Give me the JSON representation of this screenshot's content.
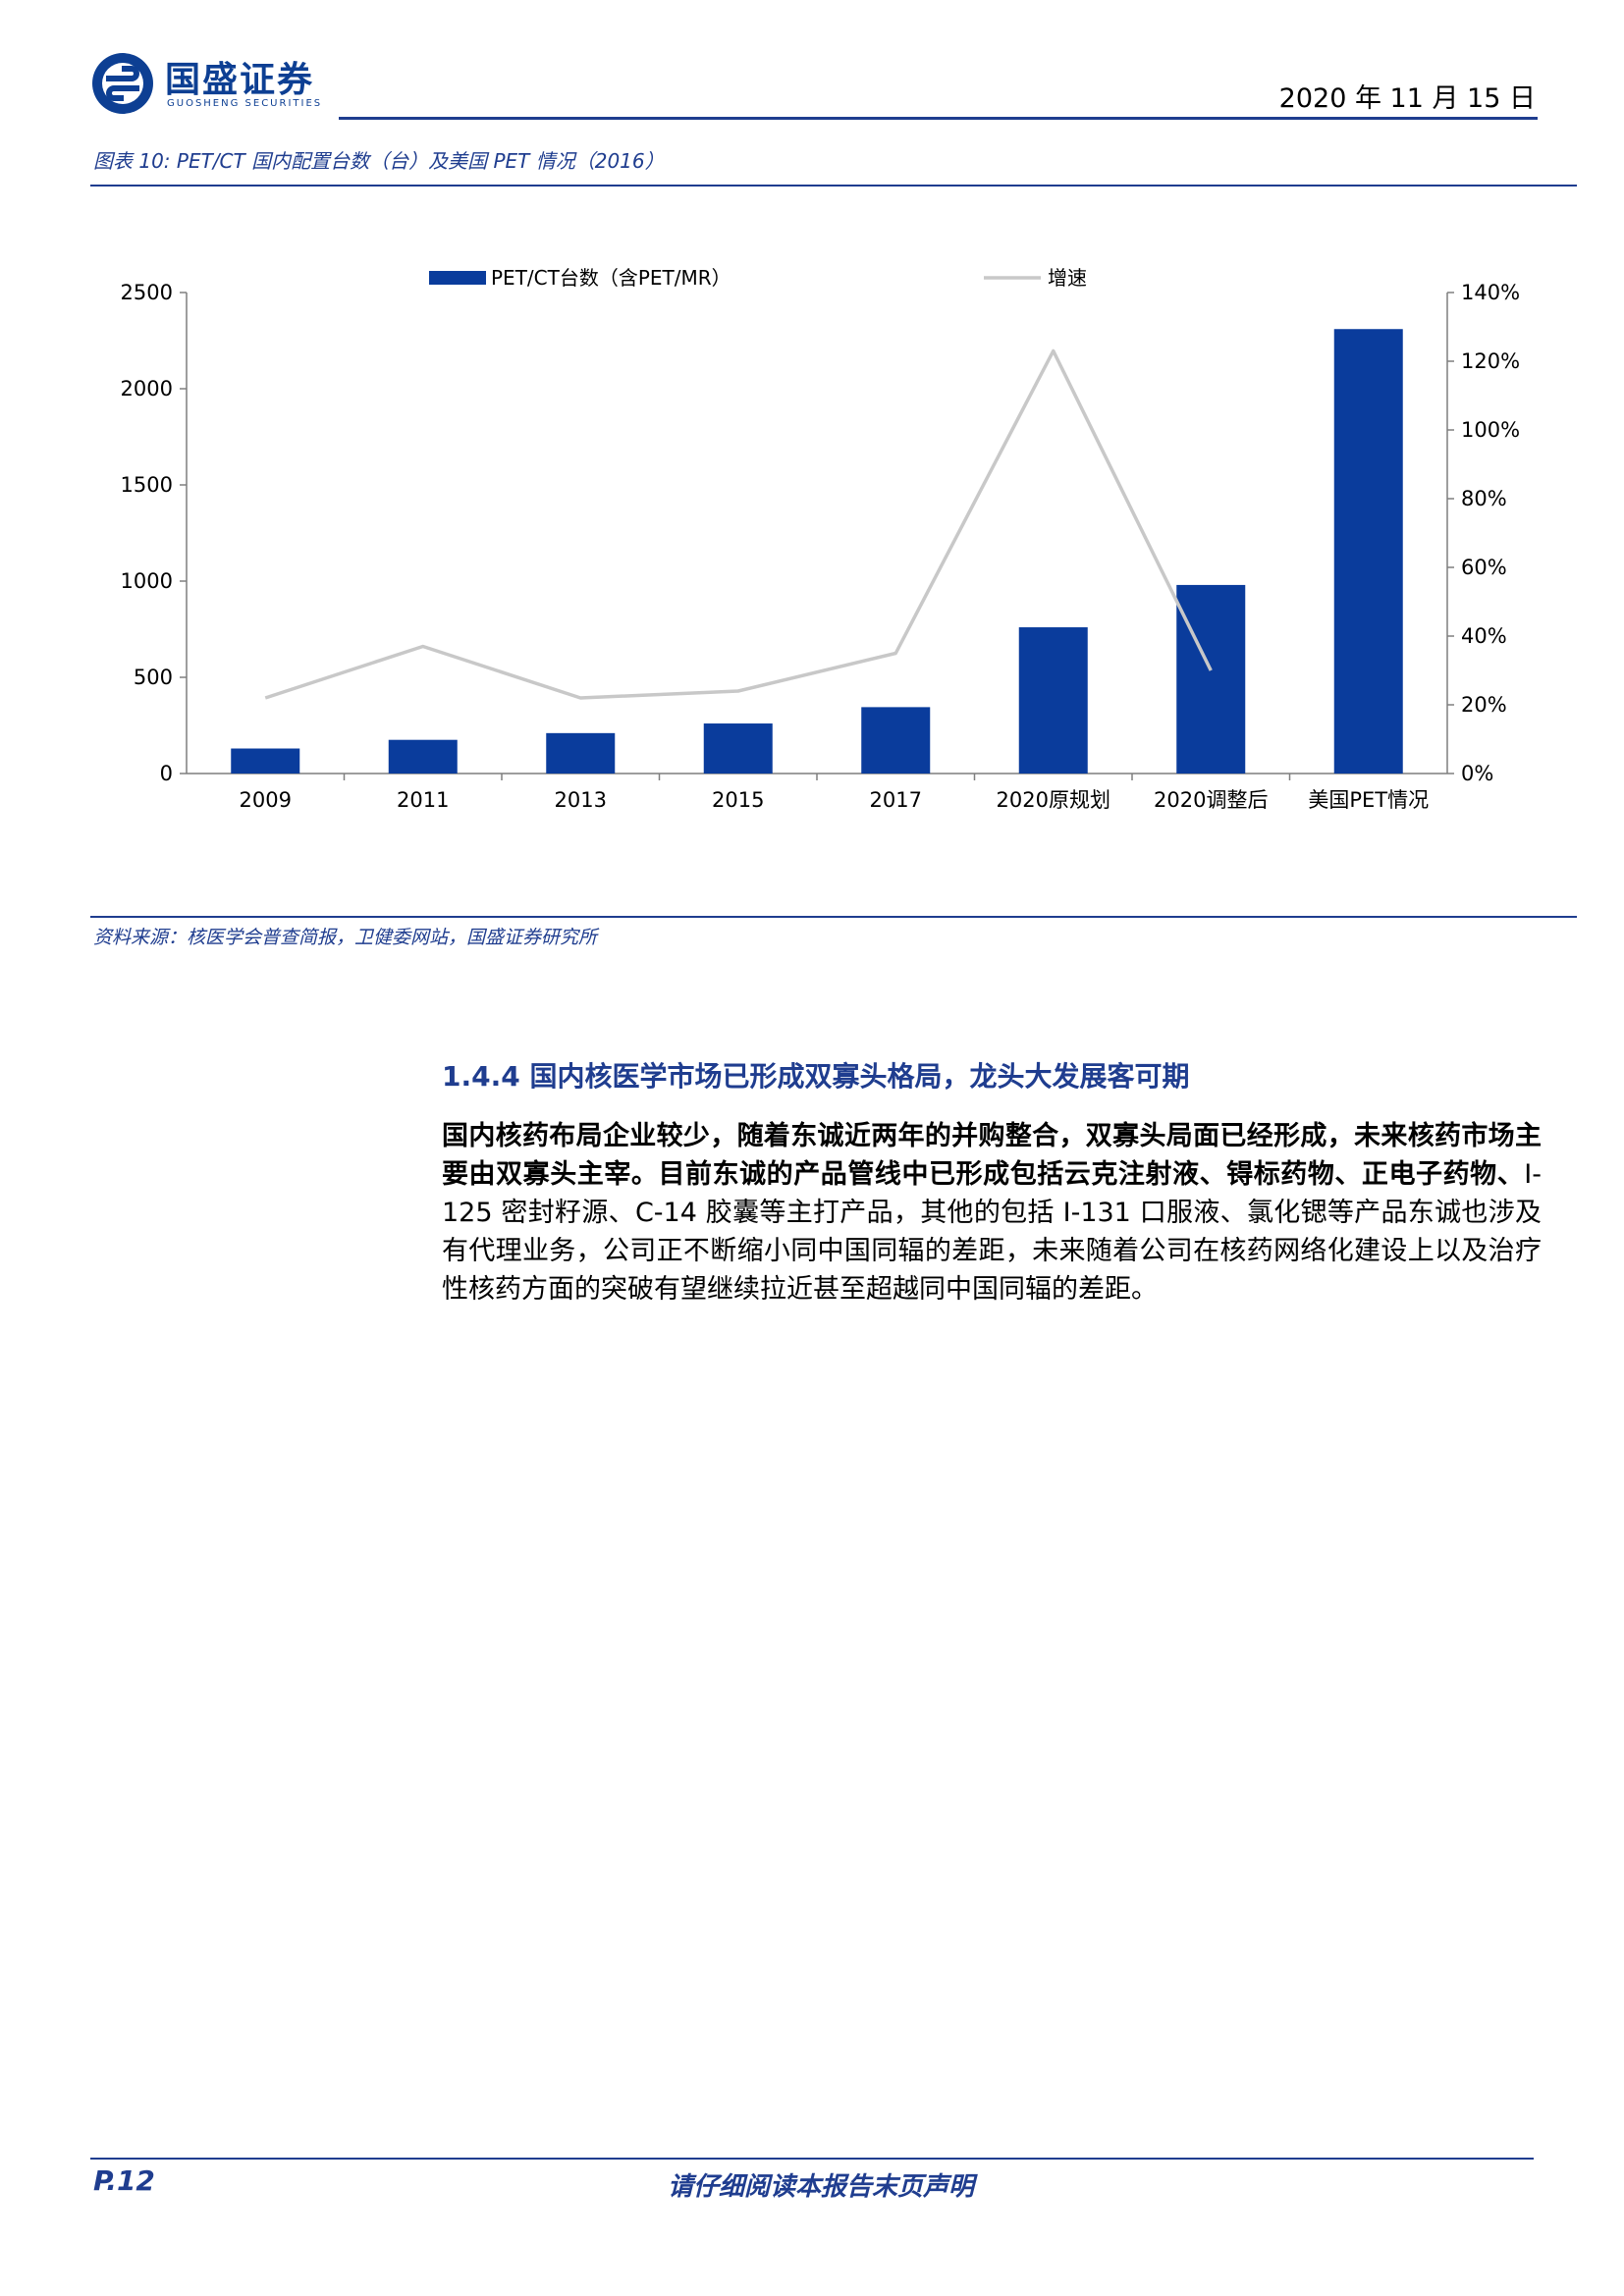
{
  "header": {
    "logo_cn": "国盛证券",
    "logo_en": "GUOSHENG SECURITIES",
    "date": "2020 年 11 月 15 日"
  },
  "figure": {
    "title": "图表 10:  PET/CT 国内配置台数（台）及美国 PET 情况（2016）",
    "source": "资料来源：核医学会普查简报，卫健委网站，国盛证券研究所"
  },
  "chart_data": {
    "type": "bar",
    "categories": [
      "2009",
      "2011",
      "2013",
      "2015",
      "2017",
      "2020原规划",
      "2020调整后",
      "美国PET情况"
    ],
    "series": [
      {
        "name": "PET/CT台数（含PET/MR）",
        "type": "bar",
        "axis": "left",
        "color": "#0a3c9c",
        "values": [
          130,
          175,
          210,
          260,
          345,
          760,
          980,
          2310
        ]
      },
      {
        "name": "增速",
        "type": "line",
        "axis": "right",
        "color": "#c8c8c8",
        "values": [
          0.22,
          0.37,
          0.22,
          0.24,
          0.35,
          1.23,
          0.3,
          null
        ]
      }
    ],
    "left_axis": {
      "ylim": [
        0,
        2500
      ],
      "ticks": [
        "0",
        "500",
        "1000",
        "1500",
        "2000",
        "2500"
      ]
    },
    "right_axis": {
      "ylim": [
        0,
        1.4
      ],
      "ticks": [
        "0%",
        "20%",
        "40%",
        "60%",
        "80%",
        "100%",
        "120%",
        "140%"
      ]
    },
    "legend": "top",
    "grid": false
  },
  "section": {
    "heading": "1.4.4  国内核医学市场已形成双寡头格局，龙头大发展客可期",
    "para_bold": "国内核药布局企业较少，随着东诚近两年的并购整合，双寡头局面已经形成，未来核药市场主要由双寡头主宰。目前东诚的产品管线中已形成包括云克注射液、锝标药物、正电子药物、",
    "para_normal": "I-125 密封籽源、C-14 胶囊等主打产品，其他的包括 I-131 口服液、氯化锶等产品东诚也涉及有代理业务，公司正不断缩小同中国同辐的差距，未来随着公司在核药网络化建设上以及治疗性核药方面的突破有望继续拉近甚至超越同中国同辐的差距。"
  },
  "footer": {
    "page": "P.12",
    "disclaimer": "请仔细阅读本报告末页声明"
  }
}
